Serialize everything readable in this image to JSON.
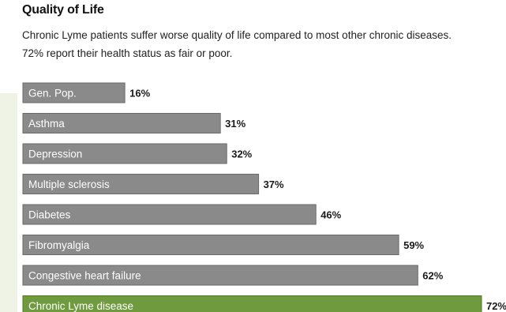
{
  "colors": {
    "bar": "#8a8a8a",
    "bar_border": "#6a6a6a",
    "highlight": "#6f9a3e",
    "highlight_border": "#4f7a22",
    "left_strip": "#eef3e6"
  },
  "chart_data": {
    "type": "bar",
    "orientation": "horizontal",
    "title": "Quality of Life",
    "subtitle": "Chronic Lyme patients suffer worse quality of life compared to most other chronic diseases. 72% report their health status as fair or poor.",
    "categories": [
      "Gen. Pop.",
      "Asthma",
      "Depression",
      "Multiple sclerosis",
      "Diabetes",
      "Fibromyalgia",
      "Congestive heart failure",
      "Chronic Lyme disease"
    ],
    "values": [
      16,
      31,
      32,
      37,
      46,
      59,
      62,
      72
    ],
    "value_labels": [
      "16%",
      "31%",
      "32%",
      "37%",
      "46%",
      "59%",
      "62%",
      "72%"
    ],
    "highlight_index": 7,
    "xlim": [
      0,
      72
    ],
    "unit": "%",
    "grid": false,
    "legend": "none"
  }
}
